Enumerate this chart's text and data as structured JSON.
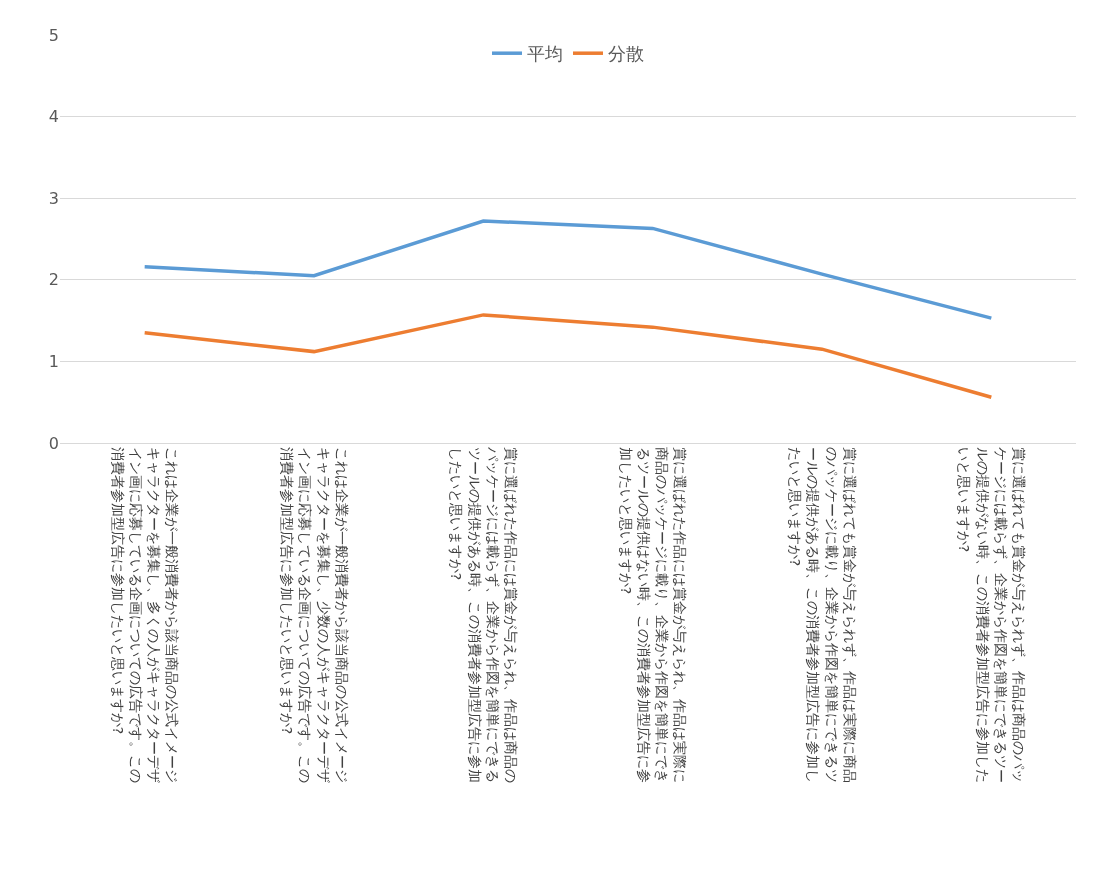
{
  "chart_data": {
    "type": "line",
    "categories": [
      "これは企業が一般消費者から該当商品の公式イメージキャラクターを募集し、多くの人がキャラクターデザイン画に応募している企画についての広告です。この消費者参加型広告に参加したいと思いますか?",
      "これは企業が一般消費者から該当商品の公式イメージキャラクターを募集し、少数の人がキャラクターデザイン画に応募している企画についての広告です。この消費者参加型広告に参加したいと思いますか?",
      "賞に選ばれた作品には賞金が与えられ、作品は商品のパッケージには載らず、企業から作図を簡単にできるツールの提供がある時、この消費者参加型広告に参加したいと思いますか?",
      "賞に選ばれた作品には賞金が与えられ、作品は実際に商品のパッケージに載り、企業から作図を簡単にできるツールの提供はない時、この消費者参加型広告に参加したいと思いますか?",
      "賞に選ばれても賞金が与えられず、作品は実際に商品のパッケージに載り、企業から作図を簡単にできるツールの提供がある時、この消費者参加型広告に参加したいと思いますか?",
      "賞に選ばれても賞金が与えられず、作品は商品のパッケージには載らず、企業から作図を簡単にできるツールの提供がない時、この消費者参加型広告に参加したいと思いますか?"
    ],
    "series": [
      {
        "name": "平均",
        "color": "#5b9bd5",
        "values": [
          2.16,
          2.05,
          2.72,
          2.63,
          2.07,
          1.53
        ]
      },
      {
        "name": "分散",
        "color": "#ed7d31",
        "values": [
          1.35,
          1.12,
          1.57,
          1.42,
          1.15,
          0.56
        ]
      }
    ],
    "ylim": [
      0,
      5
    ],
    "yticks": [
      0,
      1,
      2,
      3,
      4,
      5
    ],
    "grid": "y",
    "legend": "top",
    "marker": "none",
    "line_style": "solid"
  }
}
